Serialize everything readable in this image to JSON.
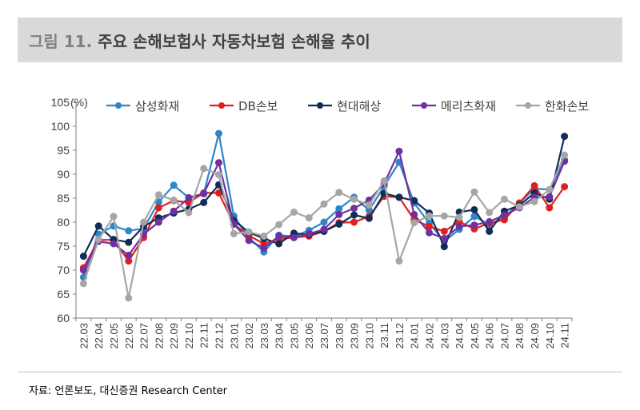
{
  "header": {
    "prefix": "그림 11.",
    "title": "주요 손해보험사 자동차보험 손해율 추이"
  },
  "source": "자료: 언론보도, 대신증권 Research Center",
  "chart_data": {
    "type": "line",
    "title": "주요 손해보험사 자동차보험 손해율 추이",
    "ylabel": "(%)",
    "ylim": [
      60,
      105
    ],
    "yticks": [
      60,
      65,
      70,
      75,
      80,
      85,
      90,
      95,
      100,
      105
    ],
    "ytick_labels": [
      "60",
      "65",
      "70",
      "75",
      "80",
      "85",
      "90",
      "95",
      "100",
      "105"
    ],
    "grid": false,
    "legend_position": "top",
    "categories": [
      "22.03",
      "22.04",
      "22.05",
      "22.06",
      "22.07",
      "22.08",
      "22.09",
      "22.10",
      "22.11",
      "22.12",
      "23.01",
      "23.02",
      "23.03",
      "23.04",
      "23.05",
      "23.06",
      "23.07",
      "23.08",
      "23.09",
      "23.10",
      "23.11",
      "23.12",
      "24.01",
      "24.02",
      "24.03",
      "24.04",
      "24.05",
      "24.06",
      "24.07",
      "24.08",
      "24.09",
      "24.10",
      "24.11"
    ],
    "series": [
      {
        "name": "삼성화재",
        "color": "#2e86c8",
        "values": [
          68.5,
          77.5,
          79.2,
          78.2,
          78.7,
          84.2,
          87.7,
          85.1,
          85.9,
          98.5,
          81.3,
          76.8,
          73.8,
          77.3,
          77.0,
          78.3,
          80.0,
          82.8,
          85.2,
          82.5,
          87.5,
          92.5,
          84.0,
          79.8,
          76.0,
          78.5,
          81.2,
          79.5,
          81.0,
          84.0,
          87.0,
          86.8,
          93.0
        ]
      },
      {
        "name": "DB손보",
        "color": "#e02020",
        "values": [
          70.5,
          76.3,
          76.3,
          71.9,
          76.8,
          83.0,
          84.5,
          84.1,
          86.1,
          86.1,
          79.6,
          77.2,
          75.5,
          76.5,
          76.8,
          77.1,
          78.1,
          79.9,
          80.0,
          81.2,
          85.4,
          85.2,
          80.5,
          79.1,
          78.1,
          80.1,
          78.6,
          79.8,
          80.5,
          84.0,
          87.6,
          83.0,
          87.4
        ]
      },
      {
        "name": "현대해상",
        "color": "#0f2d57",
        "values": [
          72.9,
          79.2,
          76.4,
          75.8,
          79.1,
          80.9,
          81.9,
          82.7,
          84.1,
          87.8,
          80.4,
          77.9,
          76.6,
          75.5,
          77.7,
          77.4,
          78.1,
          79.6,
          81.5,
          80.8,
          86.0,
          85.2,
          84.5,
          81.9,
          74.9,
          82.1,
          82.6,
          78.1,
          82.3,
          83.5,
          86.1,
          84.8,
          97.9
        ]
      },
      {
        "name": "메리츠화재",
        "color": "#7030a0",
        "values": [
          70.0,
          76.0,
          75.5,
          73.1,
          77.5,
          80.0,
          82.3,
          85.1,
          86.0,
          92.4,
          79.6,
          76.2,
          74.6,
          77.1,
          76.8,
          77.6,
          78.5,
          81.6,
          82.9,
          84.6,
          88.0,
          94.8,
          81.6,
          77.8,
          76.6,
          79.1,
          79.4,
          80.1,
          81.5,
          83.0,
          85.2,
          85.3,
          92.7
        ]
      },
      {
        "name": "한화손보",
        "color": "#a6a6a6",
        "values": [
          67.2,
          76.4,
          81.2,
          64.2,
          80.0,
          85.7,
          84.6,
          82.0,
          91.2,
          89.9,
          77.6,
          78.0,
          77.1,
          79.5,
          82.1,
          80.9,
          83.8,
          86.2,
          84.8,
          83.6,
          88.6,
          71.9,
          79.9,
          81.3,
          81.3,
          81.0,
          86.3,
          82.0,
          84.8,
          83.2,
          84.3,
          86.8,
          94.0
        ]
      }
    ]
  }
}
